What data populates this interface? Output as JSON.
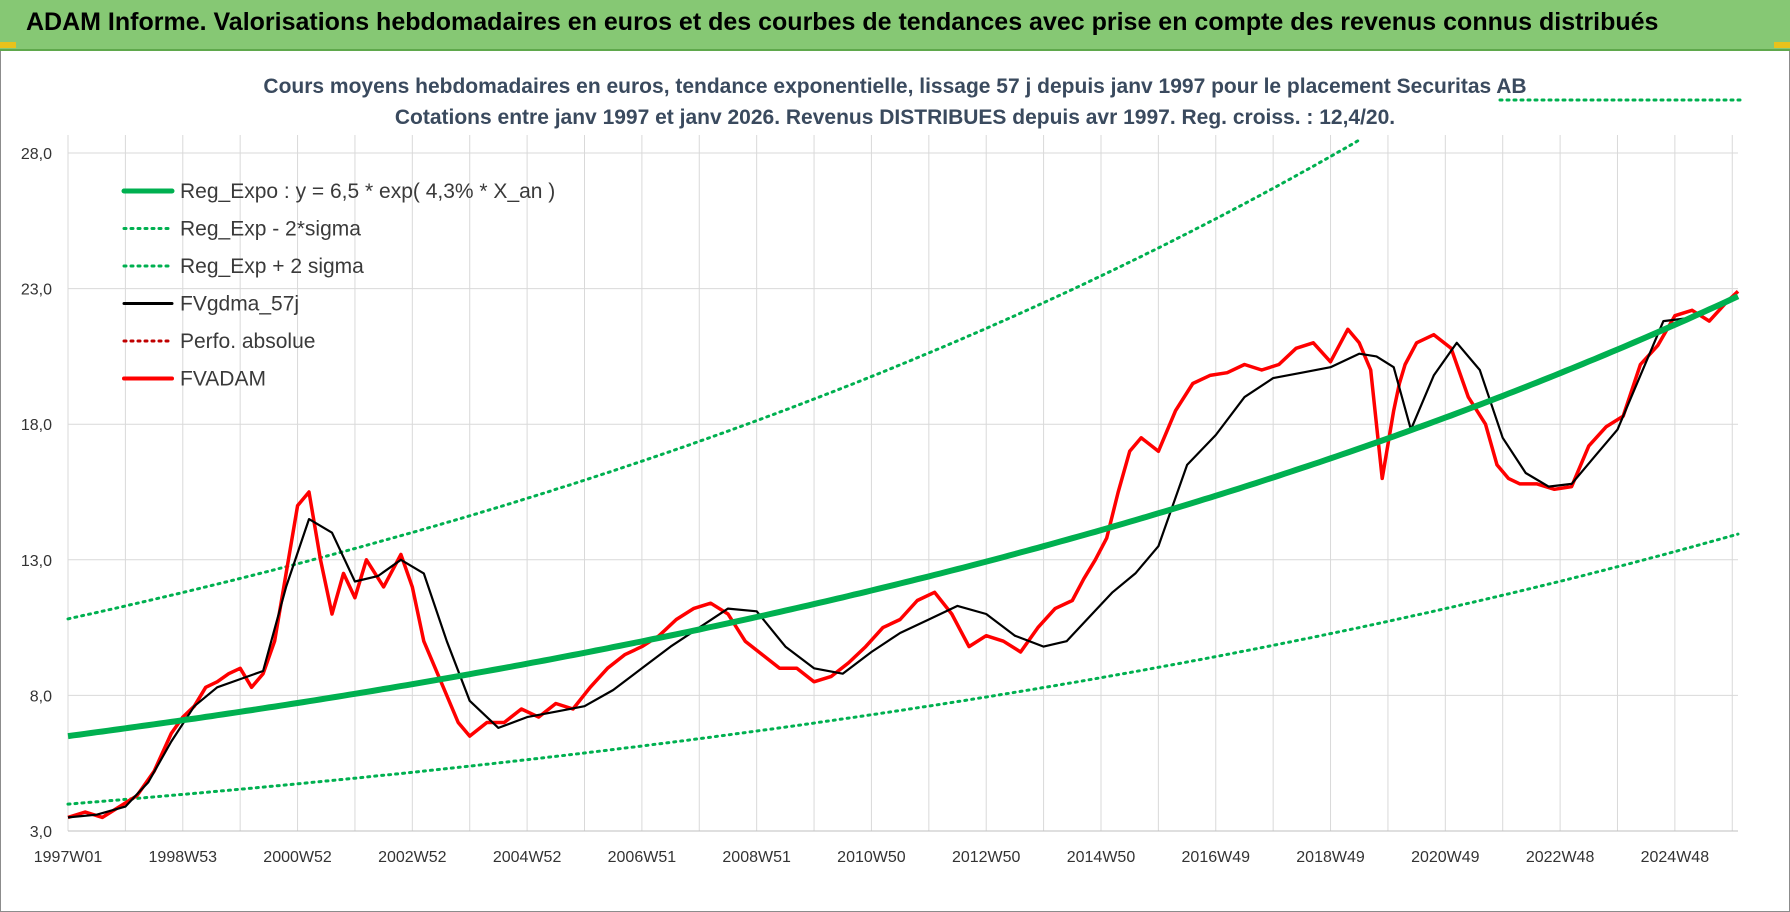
{
  "header": {
    "title": "ADAM Informe. Valorisations hebdomadaires en euros et des courbes de tendances avec prise en compte des revenus connus distribués"
  },
  "colors": {
    "header_bg": "#86c874",
    "reg": "#00b050",
    "fv57": "#000000",
    "fvadam": "#ff0000",
    "perfo": "#c00000"
  },
  "chart_data": {
    "type": "line",
    "title_line1": "Cours moyens hebdomadaires en euros, tendance exponentielle, lissage 57 j depuis janv 1997  pour le placement Securitas AB",
    "title_line2": "Cotations entre janv 1997 et janv 2026. Revenus DISTRIBUES depuis avr 1997.  Reg. croiss. : 12,4/20.",
    "x_tick_labels": [
      "1997W01",
      "1998W53",
      "2000W52",
      "2002W52",
      "2004W52",
      "2006W51",
      "2008W51",
      "2010W50",
      "2012W50",
      "2014W50",
      "2016W49",
      "2018W49",
      "2020W49",
      "2022W48",
      "2024W48"
    ],
    "y_tick_labels": [
      "3,0",
      "8,0",
      "13,0",
      "18,0",
      "23,0",
      "28,0"
    ],
    "ylim": [
      3,
      28
    ],
    "xlim": [
      1997.0,
      2026.1
    ],
    "grid": true,
    "legend_position": "top-left",
    "legend": [
      {
        "name": "Reg_Expo : y = 6,5 * exp( 4,3% *  X_an )",
        "style": "thick-solid",
        "color": "#00b050"
      },
      {
        "name": "Reg_Exp - 2*sigma",
        "style": "dotted",
        "color": "#00b050"
      },
      {
        "name": "Reg_Exp + 2 sigma",
        "style": "dotted",
        "color": "#00b050"
      },
      {
        "name": "FVgdma_57j",
        "style": "solid",
        "color": "#000000"
      },
      {
        "name": "Perfo. absolue",
        "style": "dotted",
        "color": "#c00000"
      },
      {
        "name": "FVADAM",
        "style": "solid-thick",
        "color": "#ff0000"
      }
    ],
    "regression": {
      "a": 6.5,
      "growth": 0.043
    },
    "band_factors": {
      "lower": 0.614,
      "upper": 1.665
    },
    "series": [
      {
        "name": "FVADAM",
        "x": [
          1997.0,
          1997.3,
          1997.6,
          1997.9,
          1998.2,
          1998.5,
          1998.8,
          1999.0,
          1999.2,
          1999.4,
          1999.6,
          1999.8,
          2000.0,
          2000.2,
          2000.4,
          2000.6,
          2000.8,
          2001.0,
          2001.2,
          2001.4,
          2001.6,
          2001.8,
          2002.0,
          2002.2,
          2002.5,
          2002.8,
          2003.0,
          2003.2,
          2003.5,
          2003.8,
          2004.0,
          2004.3,
          2004.6,
          2004.9,
          2005.2,
          2005.5,
          2005.8,
          2006.1,
          2006.4,
          2006.7,
          2007.0,
          2007.3,
          2007.6,
          2007.9,
          2008.2,
          2008.5,
          2008.8,
          2009.1,
          2009.4,
          2009.7,
          2010.0,
          2010.3,
          2010.6,
          2010.9,
          2011.2,
          2011.5,
          2011.8,
          2012.1,
          2012.4,
          2012.7,
          2013.0,
          2013.3,
          2013.6,
          2013.9,
          2014.2,
          2014.5,
          2014.7,
          2014.9,
          2015.1,
          2015.3,
          2015.5,
          2015.7,
          2016.0,
          2016.3,
          2016.6,
          2016.9,
          2017.2,
          2017.5,
          2017.8,
          2018.1,
          2018.4,
          2018.7,
          2019.0,
          2019.3,
          2019.5,
          2019.7,
          2019.9,
          2020.1,
          2020.2,
          2020.3,
          2020.5,
          2020.8,
          2021.1,
          2021.4,
          2021.7,
          2021.9,
          2022.1,
          2022.3,
          2022.6,
          2022.9,
          2023.2,
          2023.5,
          2023.8,
          2024.1,
          2024.4,
          2024.7,
          2025.0,
          2025.3,
          2025.6,
          2025.9,
          2026.1
        ],
        "values": [
          3.5,
          3.7,
          3.5,
          3.9,
          4.3,
          5.2,
          6.6,
          7.2,
          7.6,
          8.3,
          8.5,
          8.8,
          9.0,
          8.3,
          8.8,
          10.0,
          12.5,
          15.0,
          15.5,
          13.0,
          11.0,
          12.5,
          11.6,
          13.0,
          12.0,
          13.2,
          12.0,
          10.0,
          8.5,
          7.0,
          6.5,
          7.0,
          7.0,
          7.5,
          7.2,
          7.7,
          7.5,
          8.3,
          9.0,
          9.5,
          9.8,
          10.2,
          10.8,
          11.2,
          11.4,
          11.0,
          10.0,
          9.5,
          9.0,
          9.0,
          8.5,
          8.7,
          9.2,
          9.8,
          10.5,
          10.8,
          11.5,
          11.8,
          11.0,
          9.8,
          10.2,
          10.0,
          9.6,
          10.5,
          11.2,
          11.5,
          12.3,
          13.0,
          13.8,
          15.5,
          17.0,
          17.5,
          17.0,
          18.5,
          19.5,
          19.8,
          19.9,
          20.2,
          20.0,
          20.2,
          20.8,
          21.0,
          20.3,
          21.5,
          21.0,
          20.0,
          16.0,
          18.5,
          19.5,
          20.2,
          21.0,
          21.3,
          20.8,
          19.0,
          18.0,
          16.5,
          16.0,
          15.8,
          15.8,
          15.6,
          15.7,
          17.2,
          17.9,
          18.3,
          20.2,
          20.9,
          22.0,
          22.2,
          21.8,
          22.5,
          22.9
        ]
      },
      {
        "name": "FVgdma_57j",
        "x": [
          1997.0,
          1997.5,
          1998.0,
          1998.4,
          1998.8,
          1999.2,
          1999.6,
          2000.0,
          2000.4,
          2000.8,
          2001.2,
          2001.6,
          2002.0,
          2002.4,
          2002.8,
          2003.2,
          2003.6,
          2004.0,
          2004.5,
          2005.0,
          2005.5,
          2006.0,
          2006.5,
          2007.0,
          2007.5,
          2008.0,
          2008.5,
          2009.0,
          2009.5,
          2010.0,
          2010.5,
          2011.0,
          2011.5,
          2012.0,
          2012.5,
          2013.0,
          2013.5,
          2014.0,
          2014.4,
          2014.8,
          2015.2,
          2015.6,
          2016.0,
          2016.5,
          2017.0,
          2017.5,
          2018.0,
          2018.5,
          2019.0,
          2019.5,
          2019.8,
          2020.1,
          2020.4,
          2020.8,
          2021.2,
          2021.6,
          2022.0,
          2022.4,
          2022.8,
          2023.2,
          2023.6,
          2024.0,
          2024.4,
          2024.8,
          2025.2,
          2025.6,
          2026.1
        ],
        "values": [
          3.5,
          3.6,
          3.9,
          4.8,
          6.3,
          7.6,
          8.3,
          8.6,
          8.9,
          12.0,
          14.5,
          14.0,
          12.2,
          12.4,
          13.0,
          12.5,
          10.0,
          7.8,
          6.8,
          7.2,
          7.4,
          7.6,
          8.2,
          9.0,
          9.8,
          10.5,
          11.2,
          11.1,
          9.8,
          9.0,
          8.8,
          9.6,
          10.3,
          10.8,
          11.3,
          11.0,
          10.2,
          9.8,
          10.0,
          10.9,
          11.8,
          12.5,
          13.5,
          16.5,
          17.6,
          19.0,
          19.7,
          19.9,
          20.1,
          20.6,
          20.5,
          20.1,
          17.8,
          19.8,
          21.0,
          20.0,
          17.5,
          16.2,
          15.7,
          15.8,
          16.8,
          17.8,
          19.8,
          21.8,
          21.9,
          22.3,
          22.7
        ]
      }
    ]
  }
}
